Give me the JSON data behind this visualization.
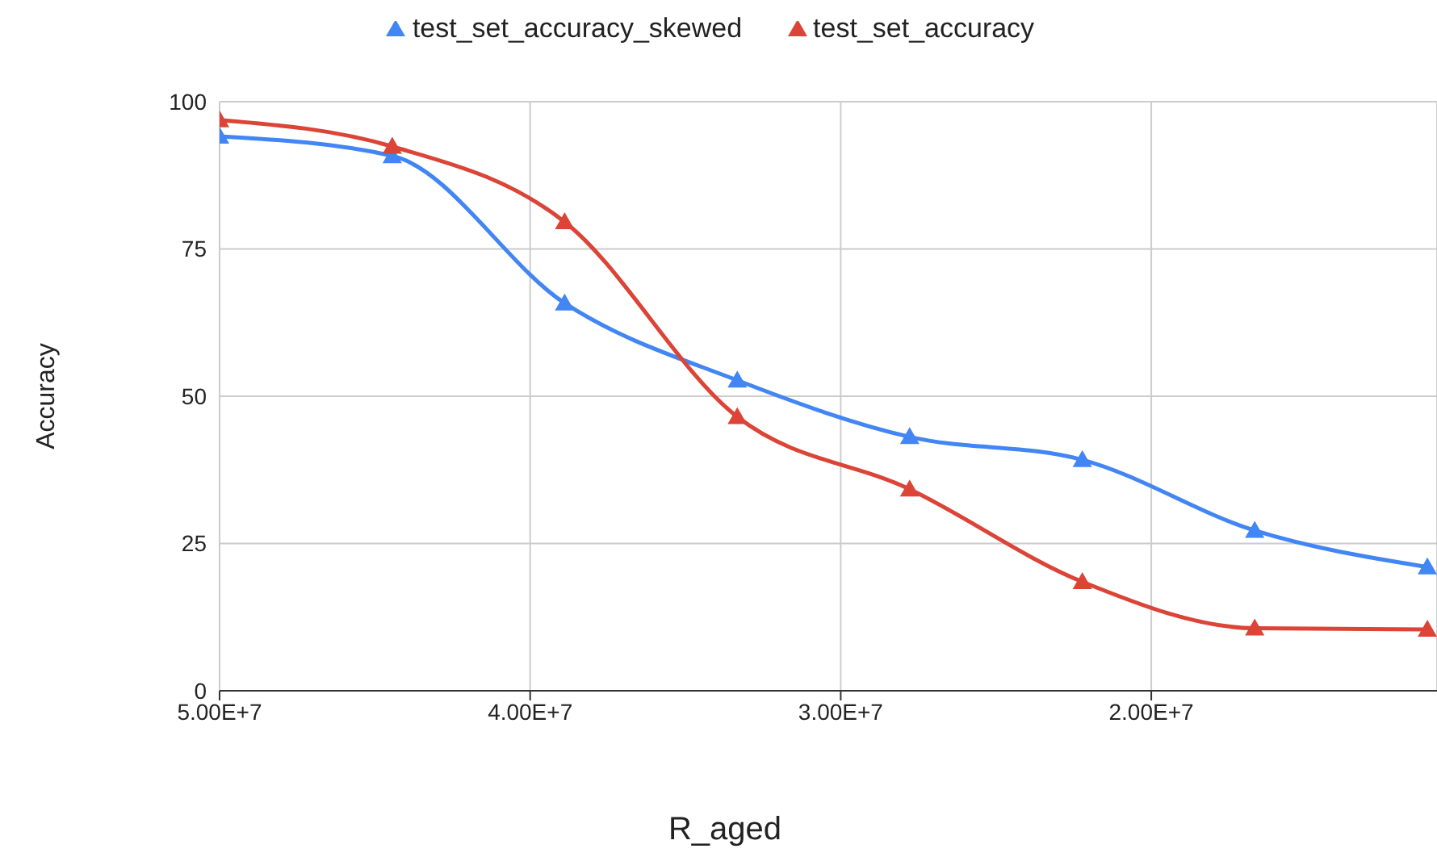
{
  "chart_data": {
    "type": "line",
    "xlabel": "R_aged",
    "ylabel": "Accuracy",
    "x": [
      50000000,
      44440000,
      38890000,
      33330000,
      27780000,
      22220000,
      16670000,
      11110000
    ],
    "series": [
      {
        "name": "test_set_accuracy_skewed",
        "color": "#4285f4",
        "values": [
          94.1,
          90.8,
          65.8,
          52.7,
          43.1,
          39.2,
          27.2,
          21.0
        ]
      },
      {
        "name": "test_set_accuracy",
        "color": "#db4437",
        "values": [
          96.9,
          92.4,
          79.6,
          46.5,
          34.2,
          18.5,
          10.6,
          10.4
        ]
      }
    ],
    "xlim": [
      50000000,
      10800000
    ],
    "xticks": [
      {
        "value": 50000000,
        "label": "5.00E+7"
      },
      {
        "value": 40000000,
        "label": "4.00E+7"
      },
      {
        "value": 30000000,
        "label": "3.00E+7"
      },
      {
        "value": 20000000,
        "label": "2.00E+7"
      }
    ],
    "ylim": [
      0,
      100
    ],
    "yticks": [
      0,
      25,
      50,
      75,
      100
    ],
    "grid": true,
    "legend": "top",
    "marker": "triangle",
    "line_style": "solid"
  }
}
